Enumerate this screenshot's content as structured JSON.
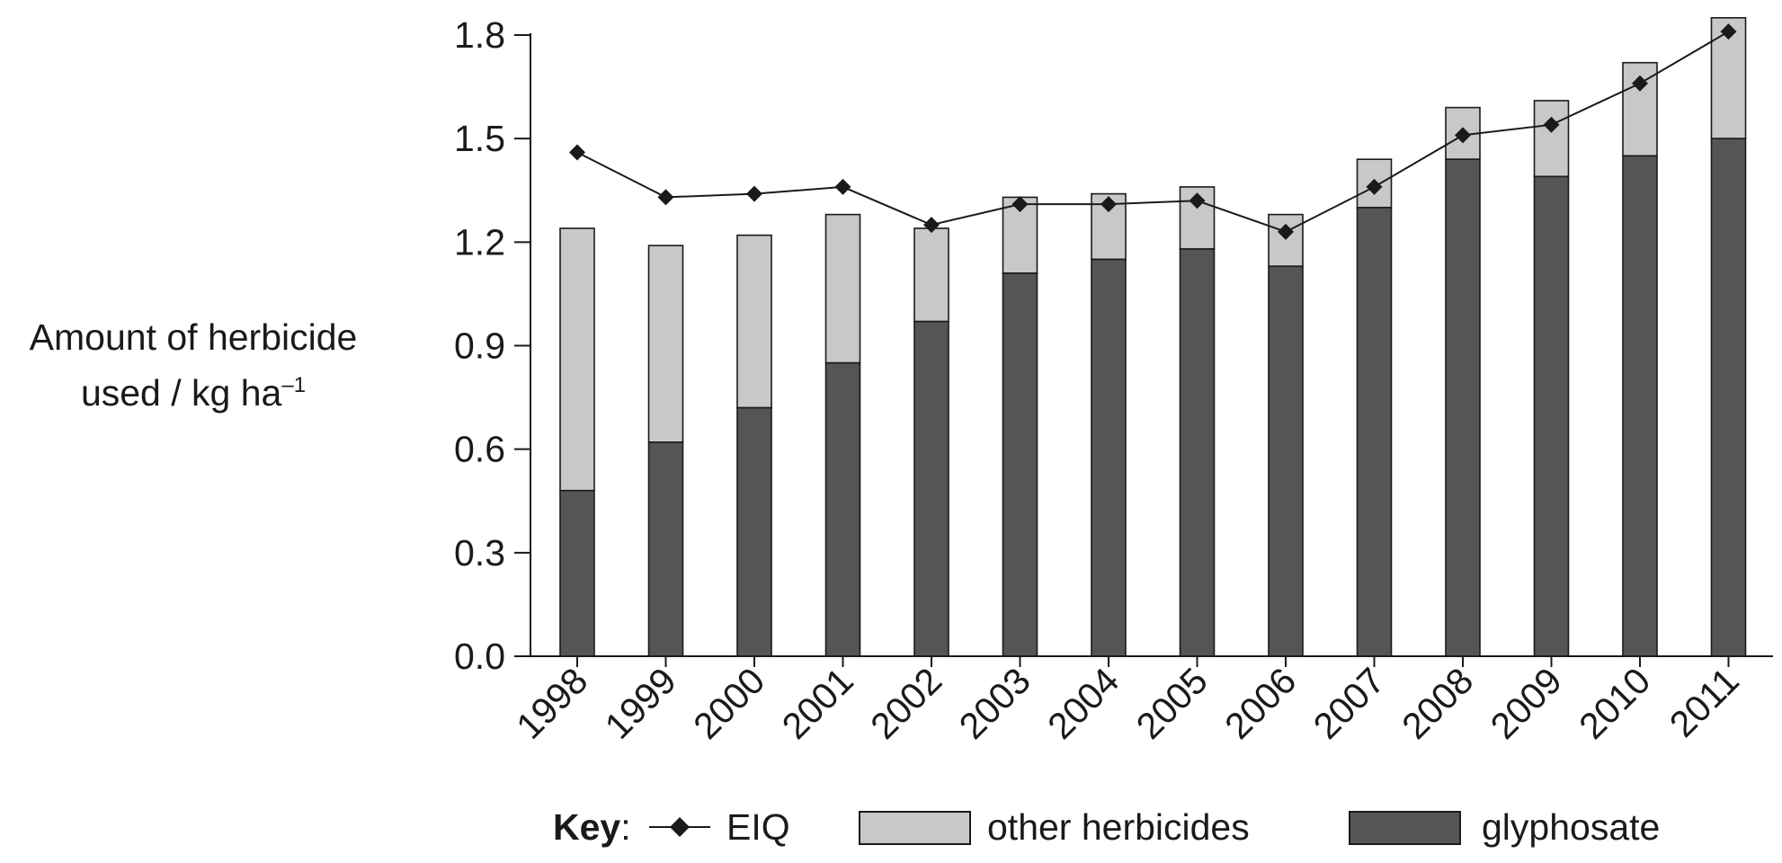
{
  "chart_data": {
    "type": "bar",
    "stacked": true,
    "categories": [
      "1998",
      "1999",
      "2000",
      "2001",
      "2002",
      "2003",
      "2004",
      "2005",
      "2006",
      "2007",
      "2008",
      "2009",
      "2010",
      "2011"
    ],
    "series": [
      {
        "name": "glyphosate",
        "kind": "bar",
        "color": "#555555",
        "values": [
          0.48,
          0.62,
          0.72,
          0.85,
          0.97,
          1.11,
          1.15,
          1.18,
          1.13,
          1.3,
          1.44,
          1.39,
          1.45,
          1.5
        ]
      },
      {
        "name": "other herbicides",
        "kind": "bar",
        "color": "#c8c8c8",
        "values": [
          0.76,
          0.57,
          0.5,
          0.43,
          0.27,
          0.22,
          0.19,
          0.18,
          0.15,
          0.14,
          0.15,
          0.22,
          0.27,
          0.35
        ]
      },
      {
        "name": "EIQ",
        "kind": "line",
        "color": "#1a1a1a",
        "marker": "diamond",
        "values": [
          1.46,
          1.33,
          1.34,
          1.36,
          1.25,
          1.31,
          1.31,
          1.32,
          1.23,
          1.36,
          1.51,
          1.54,
          1.66,
          1.81
        ]
      }
    ],
    "ylabel": "Amount of herbicide used / kg ha⁻¹",
    "ylabel_lines": [
      "Amount of herbicide",
      "used / kg ha",
      "–1"
    ],
    "ylim": [
      0,
      1.8
    ],
    "yticks": [
      "0.0",
      "0.3",
      "0.6",
      "0.9",
      "1.2",
      "1.5",
      "1.8"
    ],
    "grid": false,
    "legend": {
      "placement": "bottom",
      "title": "Key",
      "separator": ":",
      "entries": [
        "EIQ",
        "other herbicides",
        "glyphosate"
      ]
    }
  }
}
